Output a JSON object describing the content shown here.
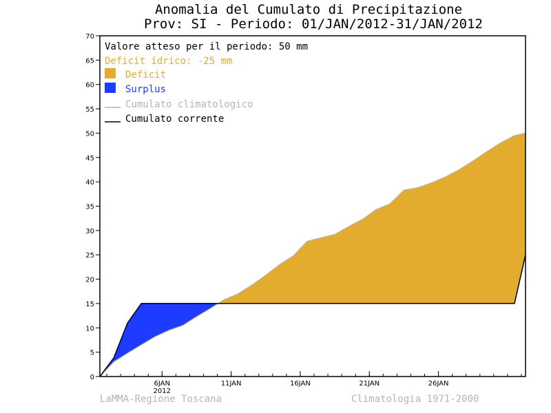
{
  "colors": {
    "deficit": "#e3ac2e",
    "surplus": "#1e3cff",
    "climatological": "#b4b4b4",
    "current": "#000000",
    "footer": "#b4b4b4"
  },
  "chart_data": {
    "type": "area",
    "title": "Anomalia del Cumulato di Precipitazione",
    "subtitle": "Prov: SI - Periodo: 01/JAN/2012-31/JAN/2012",
    "xlabel": "",
    "ylabel": "",
    "xlim": [
      1,
      31.8
    ],
    "ylim": [
      0,
      70
    ],
    "yticks": [
      0,
      5,
      10,
      15,
      20,
      25,
      30,
      35,
      40,
      45,
      50,
      55,
      60,
      65,
      70
    ],
    "xticks": [
      {
        "x": 5.5,
        "label": "6JAN",
        "sublabel": "2012"
      },
      {
        "x": 10.5,
        "label": "11JAN"
      },
      {
        "x": 15.5,
        "label": "16JAN"
      },
      {
        "x": 20.5,
        "label": "21JAN"
      },
      {
        "x": 25.5,
        "label": "26JAN"
      }
    ],
    "grid": false,
    "legend_position": "top-left",
    "legend": {
      "expected": "Valore atteso per il periodo: 50 mm",
      "deficit_text": "Deficit idrico: -25 mm",
      "deficit": "Deficit",
      "surplus": "Surplus",
      "climatological": "Cumulato climatologico",
      "current": "Cumulato corrente"
    },
    "series": [
      {
        "name": "Cumulato climatologico",
        "x": [
          1,
          2,
          3,
          4,
          5,
          6,
          7,
          8,
          9,
          10,
          11,
          12,
          13,
          14,
          15,
          16,
          17,
          18,
          19,
          20,
          21,
          22,
          23,
          24,
          25,
          26,
          27,
          28,
          29,
          30,
          31,
          31.8
        ],
        "y": [
          0,
          3,
          4.8,
          6.5,
          8.2,
          9.5,
          10.5,
          12.3,
          14,
          15.8,
          17,
          18.8,
          20.8,
          23,
          24.8,
          27.8,
          28.5,
          29.2,
          30.8,
          32.3,
          34.3,
          35.5,
          38.3,
          38.8,
          39.8,
          41,
          42.5,
          44.3,
          46.2,
          48,
          49.5,
          50
        ]
      },
      {
        "name": "Cumulato corrente",
        "x": [
          1,
          2,
          3,
          4,
          5,
          6,
          7,
          8,
          9,
          10,
          11,
          12,
          13,
          14,
          15,
          16,
          17,
          18,
          19,
          20,
          21,
          22,
          23,
          24,
          25,
          26,
          27,
          28,
          29,
          30,
          31,
          31.8
        ],
        "y": [
          0,
          3.8,
          11,
          15,
          15,
          15,
          15,
          15,
          15,
          15,
          15,
          15,
          15,
          15,
          15,
          15,
          15,
          15,
          15,
          15,
          15,
          15,
          15,
          15,
          15,
          15,
          15,
          15,
          15,
          15,
          15,
          25
        ]
      }
    ]
  },
  "footer": {
    "left": "LaMMA-Regione Toscana",
    "right": "Climatologia 1971-2000"
  }
}
